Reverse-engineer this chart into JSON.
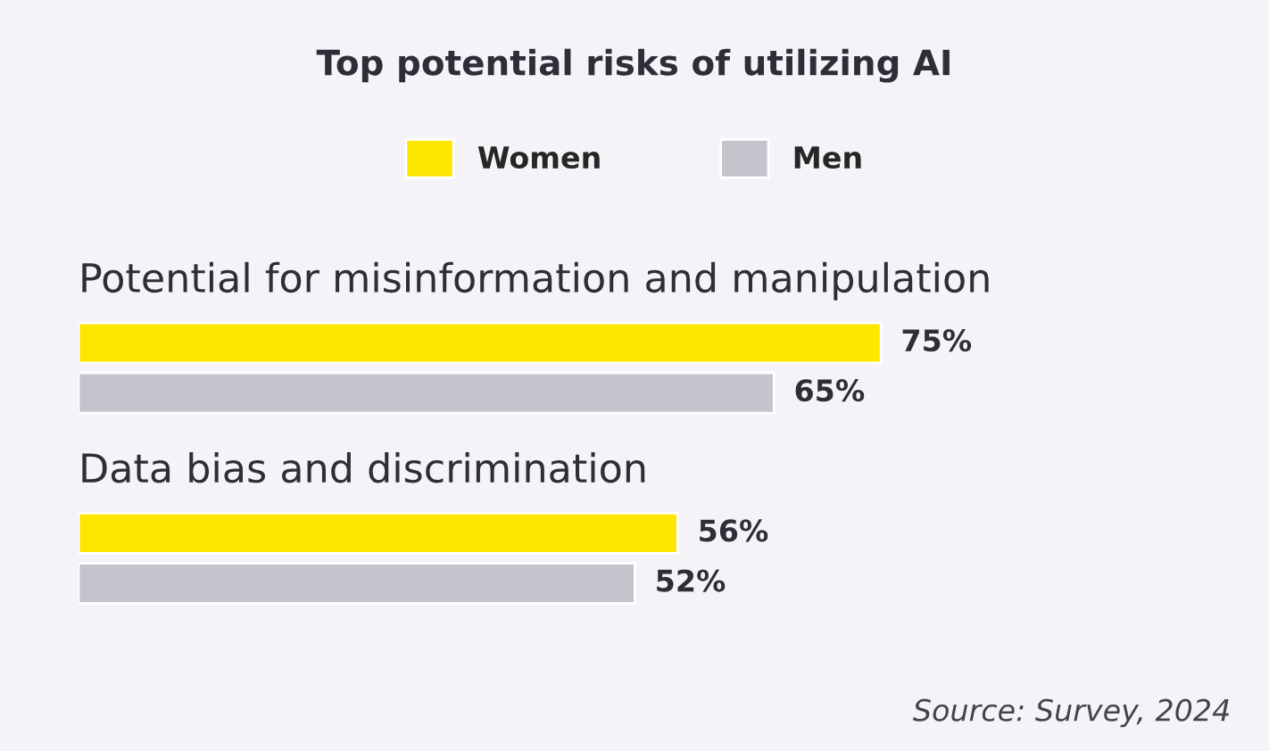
{
  "chart_data": {
    "type": "bar",
    "orientation": "horizontal",
    "title": "Top potential risks of utilizing AI",
    "categories": [
      "Potential for misinformation and manipulation",
      "Data bias and discrimination"
    ],
    "series": [
      {
        "name": "Women",
        "color": "#ffe600",
        "values": [
          75,
          56
        ],
        "value_labels": [
          "75%",
          "56%"
        ]
      },
      {
        "name": "Men",
        "color": "#c4c4cd",
        "values": [
          65,
          52
        ],
        "value_labels": [
          "65%",
          "52%"
        ]
      }
    ],
    "legend": "top",
    "annotations": [
      "Source: Survey, 2024"
    ]
  }
}
